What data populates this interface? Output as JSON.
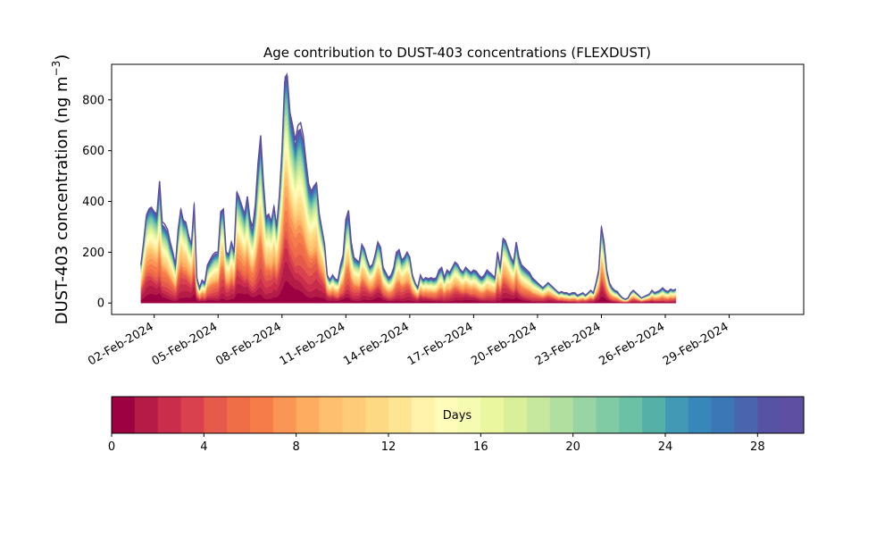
{
  "chart_data": [
    {
      "type": "area",
      "subtype": "stacked",
      "title": "Age contribution to DUST-403 concentrations (FLEXDUST)",
      "ylabel": "DUST-403 concentration (ng m",
      "ylabel_sup": "−3",
      "ylabel_end": ")",
      "ylim": [
        -45,
        940
      ],
      "yticks": [
        0,
        200,
        400,
        600,
        800
      ],
      "xlim": [
        "2024-01-31T00:00",
        "2024-03-03T12:00"
      ],
      "xticks": [
        "2024-02-02",
        "2024-02-05",
        "2024-02-08",
        "2024-02-11",
        "2024-02-14",
        "2024-02-17",
        "2024-02-20",
        "2024-02-23",
        "2024-02-26",
        "2024-02-29"
      ],
      "xtick_labels": [
        "02-Feb-2024",
        "05-Feb-2024",
        "08-Feb-2024",
        "11-Feb-2024",
        "14-Feb-2024",
        "17-Feb-2024",
        "20-Feb-2024",
        "23-Feb-2024",
        "26-Feb-2024",
        "29-Feb-2024"
      ],
      "x_start": "2024-02-01T09:00",
      "x_step_hours": 3,
      "series_total": [
        150,
        240,
        340,
        365,
        375,
        360,
        350,
        480,
        320,
        310,
        290,
        240,
        200,
        150,
        290,
        370,
        320,
        310,
        260,
        230,
        390,
        100,
        60,
        90,
        80,
        150,
        170,
        190,
        200,
        200,
        360,
        370,
        200,
        190,
        240,
        200,
        430,
        410,
        380,
        350,
        420,
        330,
        300,
        390,
        550,
        660,
        480,
        340,
        350,
        320,
        380,
        300,
        420,
        600,
        870,
        895,
        750,
        700,
        640,
        700,
        710,
        660,
        560,
        470,
        440,
        460,
        470,
        350,
        290,
        230,
        110,
        90,
        110,
        95,
        90,
        150,
        190,
        330,
        365,
        240,
        180,
        170,
        160,
        230,
        210,
        170,
        140,
        150,
        190,
        240,
        220,
        140,
        120,
        100,
        110,
        140,
        200,
        210,
        170,
        180,
        200,
        180,
        110,
        80,
        60,
        110,
        90,
        100,
        95,
        100,
        95,
        100,
        130,
        140,
        100,
        130,
        120,
        140,
        160,
        150,
        130,
        120,
        140,
        130,
        120,
        130,
        125,
        110,
        100,
        110,
        130,
        120,
        110,
        100,
        200,
        140,
        250,
        240,
        210,
        180,
        160,
        240,
        180,
        150,
        140,
        130,
        120,
        100,
        90,
        80,
        70,
        60,
        70,
        80,
        70,
        60,
        50,
        40,
        45,
        40,
        40,
        35,
        40,
        40,
        30,
        35,
        40,
        30,
        40,
        50,
        40,
        80,
        130,
        300,
        240,
        130,
        80,
        60,
        50,
        45,
        30,
        20,
        15,
        20,
        40,
        50,
        40,
        30,
        20,
        25,
        30,
        35,
        50,
        40,
        45,
        50,
        60,
        50,
        45,
        55,
        50,
        55
      ],
      "age_weights": [
        0.06,
        0.055,
        0.05,
        0.046,
        0.043,
        0.04,
        0.037,
        0.035,
        0.033,
        0.031,
        0.029,
        0.028,
        0.027,
        0.026,
        0.025,
        0.024,
        0.023,
        0.022,
        0.021,
        0.02,
        0.019,
        0.018,
        0.017,
        0.016,
        0.015,
        0.014,
        0.013,
        0.012,
        0.011,
        0.01
      ],
      "colorbar": {
        "label": "Days",
        "range": [
          0,
          30
        ],
        "ticks": [
          0,
          4,
          8,
          12,
          16,
          20,
          24,
          28
        ],
        "colors": [
          "#9e0142",
          "#b41c47",
          "#c92d4b",
          "#d8414d",
          "#e55a4a",
          "#ef6e48",
          "#f67c4a",
          "#f99555",
          "#fdad60",
          "#febf6e",
          "#fecb78",
          "#fed983",
          "#fee593",
          "#fff3ab",
          "#fffbb9",
          "#f6fbb2",
          "#eaf79e",
          "#d9ef9a",
          "#c5e89e",
          "#b0df9f",
          "#99d5a4",
          "#80cba4",
          "#6ac1a4",
          "#55b0a8",
          "#4299b5",
          "#3787ba",
          "#3b77b6",
          "#4a64ad",
          "#5752a3",
          "#5e4fa2"
        ]
      }
    }
  ]
}
